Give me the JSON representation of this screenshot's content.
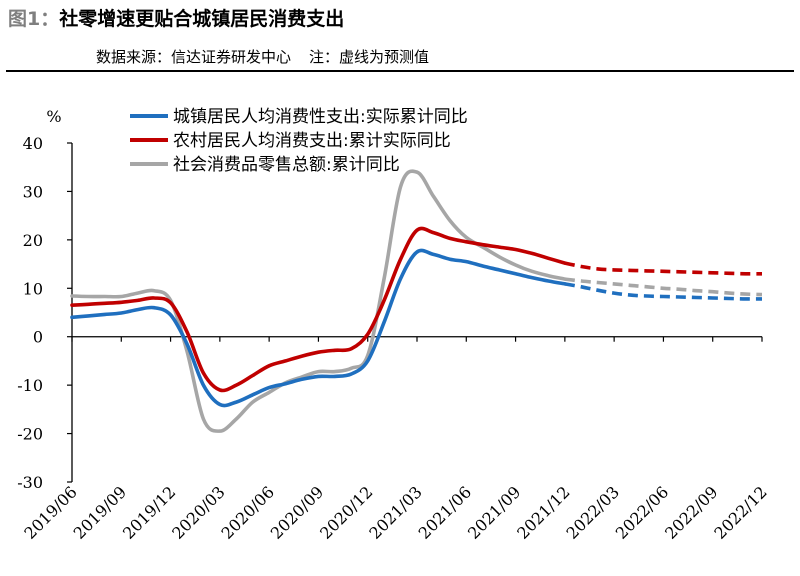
{
  "figure": {
    "prefix": "图1：",
    "title": "社零增速更贴合城镇居民消费支出",
    "source": "数据来源：信达证券研发中心",
    "note": "注：虚线为预测值"
  },
  "chart_data": {
    "type": "line",
    "ylabel": "%",
    "ylim": [
      -30,
      40
    ],
    "yticks": [
      -30,
      -20,
      -10,
      0,
      10,
      20,
      30,
      40
    ],
    "x_ticks": [
      "2019/06",
      "2019/09",
      "2019/12",
      "2020/03",
      "2020/06",
      "2020/09",
      "2020/12",
      "2021/03",
      "2021/06",
      "2021/09",
      "2021/12",
      "2022/03",
      "2022/06",
      "2022/09",
      "2022/12"
    ],
    "x_months": [
      "2019/06",
      "2019/07",
      "2019/08",
      "2019/09",
      "2019/10",
      "2019/11",
      "2019/12",
      "2020/01",
      "2020/02",
      "2020/03",
      "2020/04",
      "2020/05",
      "2020/06",
      "2020/07",
      "2020/08",
      "2020/09",
      "2020/10",
      "2020/11",
      "2020/12",
      "2021/01",
      "2021/02",
      "2021/03",
      "2021/04",
      "2021/05",
      "2021/06",
      "2021/07",
      "2021/08",
      "2021/09",
      "2021/10",
      "2021/11",
      "2021/12",
      "2022/01",
      "2022/02",
      "2022/03",
      "2022/04",
      "2022/05",
      "2022/06",
      "2022/07",
      "2022/08",
      "2022/09",
      "2022/10",
      "2022/11",
      "2022/12"
    ],
    "forecast_start": "2021/12",
    "grid": false,
    "legend_position": "top",
    "series": [
      {
        "name": "城镇居民人均消费性支出:实际累计同比",
        "color": "#1f6fbf",
        "values": [
          4.0,
          4.3,
          4.6,
          4.9,
          5.6,
          6.0,
          4.5,
          -1.5,
          -10.0,
          -14.0,
          -13.5,
          -12.0,
          -10.5,
          -9.7,
          -8.8,
          -8.2,
          -8.2,
          -7.7,
          -5.0,
          3.0,
          12.0,
          17.5,
          17.0,
          16.0,
          15.5,
          14.6,
          13.8,
          13.0,
          12.2,
          11.5,
          10.9,
          10.3,
          9.6,
          9.0,
          8.6,
          8.4,
          8.3,
          8.2,
          8.1,
          8.0,
          7.9,
          7.8,
          7.8
        ]
      },
      {
        "name": "农村居民人均消费支出:累计实际同比",
        "color": "#c00000",
        "values": [
          6.5,
          6.7,
          6.9,
          7.1,
          7.5,
          8.0,
          7.0,
          1.0,
          -7.5,
          -11.0,
          -10.0,
          -8.0,
          -6.0,
          -5.0,
          -4.0,
          -3.2,
          -2.8,
          -2.5,
          0.5,
          7.5,
          16.0,
          22.0,
          21.5,
          20.3,
          19.6,
          19.0,
          18.5,
          18.0,
          17.2,
          16.2,
          15.2,
          14.5,
          14.0,
          13.8,
          13.7,
          13.6,
          13.5,
          13.4,
          13.3,
          13.2,
          13.1,
          13.0,
          13.0
        ]
      },
      {
        "name": "社会消费品零售总额:累计同比",
        "color": "#a6a6a6",
        "values": [
          8.4,
          8.3,
          8.3,
          8.3,
          9.0,
          9.5,
          7.5,
          -3.0,
          -17.0,
          -19.5,
          -17.0,
          -13.5,
          -11.5,
          -9.5,
          -8.3,
          -7.2,
          -7.2,
          -6.5,
          -3.9,
          12.0,
          31.0,
          34.0,
          29.0,
          24.0,
          20.5,
          18.5,
          16.5,
          14.8,
          13.5,
          12.6,
          11.9,
          11.5,
          11.2,
          10.9,
          10.6,
          10.3,
          10.0,
          9.8,
          9.5,
          9.3,
          9.0,
          8.8,
          8.7
        ]
      }
    ]
  }
}
